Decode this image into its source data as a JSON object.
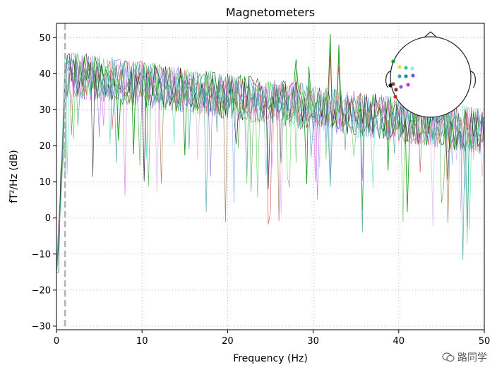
{
  "chart_data": {
    "type": "line",
    "title": "Magnetometers",
    "xlabel": "Frequency (Hz)",
    "ylabel": "fT²/Hz (dB)",
    "xlim": [
      0,
      50
    ],
    "ylim": [
      -31,
      54
    ],
    "x_ticks": [
      0,
      10,
      20,
      30,
      40,
      50
    ],
    "y_ticks": [
      -30,
      -20,
      -10,
      0,
      10,
      20,
      30,
      40,
      50
    ],
    "grid": true,
    "grid_style": "dotted",
    "vline_dashed_x": 1,
    "series_count": 12,
    "series_colors": [
      "#1a9e1a",
      "#2fa02f",
      "#c82828",
      "#e04ef0",
      "#8e5ad8",
      "#3fd6b0",
      "#6a9fe8",
      "#8b5a2b",
      "#111111",
      "#d8a0e8",
      "#48c848",
      "#1e8e8e"
    ],
    "series_summary": {
      "frequency_step_hz": 0.25,
      "mean_level_db_start": 40,
      "mean_level_db_end": 24,
      "typical_spread_db": 8,
      "min_dip_db": -15,
      "notable_peaks_hz": [
        28,
        29.5,
        32,
        33
      ],
      "notable_peaks_db": [
        44,
        42,
        51,
        48
      ]
    }
  },
  "inset": {
    "description_label": "sensor layout (head)",
    "dot_colors": [
      "#1a9e1a",
      "#e0e040",
      "#2ec8a0",
      "#a0e0f0",
      "#3a9ad0",
      "#1e8e8e",
      "#6060e0",
      "#8a4a20",
      "#b02020",
      "#8e5ad8",
      "#f020f0",
      "#c82828",
      "#111111"
    ]
  },
  "watermark": {
    "text": "路同学"
  }
}
